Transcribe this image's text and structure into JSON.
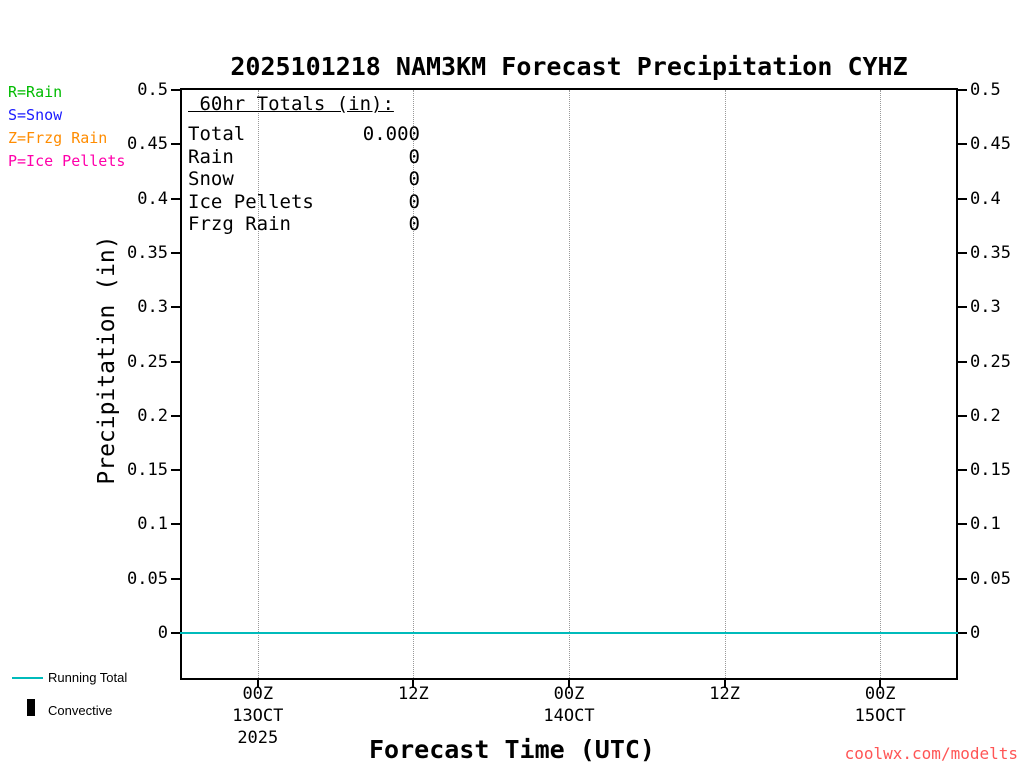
{
  "title": "2025101218 NAM3KM Forecast Precipitation CYHZ",
  "watermark": {
    "text": "coolwx.com/modelts",
    "color": "#ff5555"
  },
  "axes": {
    "ylabel": "Precipitation (in)",
    "xlabel": "Forecast Time (UTC)"
  },
  "type_legend": [
    {
      "label": "R=Rain",
      "color": "#00bb00"
    },
    {
      "label": "S=Snow",
      "color": "#1a1aff"
    },
    {
      "label": "Z=Frzg Rain",
      "color": "#ff8c00"
    },
    {
      "label": "P=Ice Pellets",
      "color": "#ff00aa"
    }
  ],
  "totals_box": {
    "heading": " 60hr Totals (in):",
    "rows": [
      {
        "label": "Total",
        "value": "0.000"
      },
      {
        "label": "Rain",
        "value": "0"
      },
      {
        "label": "Snow",
        "value": "0"
      },
      {
        "label": "Ice Pellets",
        "value": "0"
      },
      {
        "label": "Frzg Rain",
        "value": "0"
      }
    ]
  },
  "bottom_legend": [
    {
      "label": "Running Total",
      "swatch": "line",
      "color": "#00bbbb"
    },
    {
      "label": "Convective",
      "swatch": "bar",
      "color": "#000000"
    }
  ],
  "chart_data": {
    "type": "line",
    "title": "2025101218 NAM3KM Forecast Precipitation CYHZ",
    "xlabel": "Forecast Time (UTC)",
    "ylabel": "Precipitation (in)",
    "ylim": [
      0,
      0.5
    ],
    "ytick_step": 0.05,
    "x_range_hours": [
      0,
      60
    ],
    "grid": "vertical-dotted",
    "legend_position": "bottom-left",
    "legend": [
      "Running Total",
      "Convective"
    ],
    "yticks": [
      {
        "value": 0,
        "label": "0"
      },
      {
        "value": 0.05,
        "label": "0.05"
      },
      {
        "value": 0.1,
        "label": "0.1"
      },
      {
        "value": 0.15,
        "label": "0.15"
      },
      {
        "value": 0.2,
        "label": "0.2"
      },
      {
        "value": 0.25,
        "label": "0.25"
      },
      {
        "value": 0.3,
        "label": "0.3"
      },
      {
        "value": 0.35,
        "label": "0.35"
      },
      {
        "value": 0.4,
        "label": "0.4"
      },
      {
        "value": 0.45,
        "label": "0.45"
      },
      {
        "value": 0.5,
        "label": "0.5"
      }
    ],
    "xticks": [
      {
        "hour": 6,
        "label": "00Z",
        "sub": "13OCT",
        "sub2": "2025"
      },
      {
        "hour": 18,
        "label": "12Z"
      },
      {
        "hour": 30,
        "label": "00Z",
        "sub": "14OCT"
      },
      {
        "hour": 42,
        "label": "12Z"
      },
      {
        "hour": 54,
        "label": "00Z",
        "sub": "15OCT"
      }
    ],
    "series": [
      {
        "name": "Running Total",
        "color": "#00bbbb",
        "x_hours": [
          0,
          60
        ],
        "values": [
          0,
          0
        ]
      },
      {
        "name": "Convective",
        "type": "bar",
        "color": "#000000",
        "values": []
      }
    ],
    "totals_60hr_in": {
      "total": 0.0,
      "rain": 0,
      "snow": 0,
      "ice_pellets": 0,
      "frzg_rain": 0
    }
  }
}
